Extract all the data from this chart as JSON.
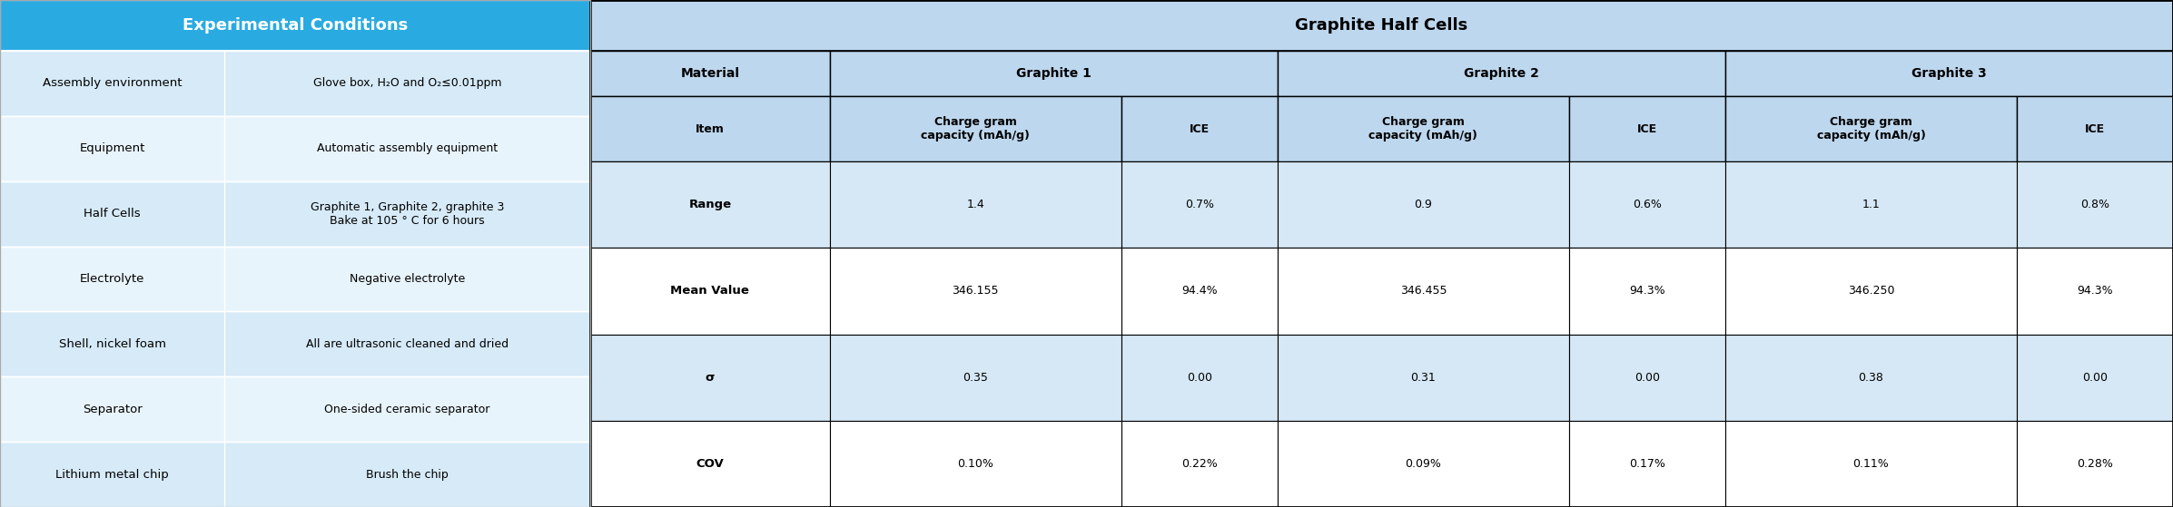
{
  "fig_width": 23.93,
  "fig_height": 5.59,
  "dpi": 100,
  "left_table": {
    "header": "Experimental Conditions",
    "header_bg": "#29ABE2",
    "header_text_color": "#FFFFFF",
    "row_bg_light": "#D6EAF8",
    "row_bg_lighter": "#E8F4FC",
    "rows": [
      [
        "Assembly environment",
        "Glove box, H₂O and O₂≤0.01ppm"
      ],
      [
        "Equipment",
        "Automatic assembly equipment"
      ],
      [
        "Half Cells",
        "Graphite 1, Graphite 2, graphite 3\nBake at 105 ° C for 6 hours"
      ],
      [
        "Electrolyte",
        "Negative electrolyte"
      ],
      [
        "Shell, nickel foam",
        "All are ultrasonic cleaned and dried"
      ],
      [
        "Separator",
        "One-sided ceramic separator"
      ],
      [
        "Lithium metal chip",
        "Brush the chip"
      ]
    ]
  },
  "right_table": {
    "super_header": "Graphite Half Cells",
    "super_header_bg": "#BDD7EE",
    "col_header_bg": "#BDD7EE",
    "sub_headers": [
      "Item",
      "Charge gram\ncapacity (mAh/g)",
      "ICE",
      "Charge gram\ncapacity (mAh/g)",
      "ICE",
      "Charge gram\ncapacity (mAh/g)",
      "ICE"
    ],
    "graphite_labels": [
      "Graphite 1",
      "Graphite 2",
      "Graphite 3"
    ],
    "rows": [
      [
        "Range",
        "1.4",
        "0.7%",
        "0.9",
        "0.6%",
        "1.1",
        "0.8%"
      ],
      [
        "Mean Value",
        "346.155",
        "94.4%",
        "346.455",
        "94.3%",
        "346.250",
        "94.3%"
      ],
      [
        "σ",
        "0.35",
        "0.00",
        "0.31",
        "0.00",
        "0.38",
        "0.00"
      ],
      [
        "COV",
        "0.10%",
        "0.22%",
        "0.09%",
        "0.17%",
        "0.11%",
        "0.28%"
      ]
    ],
    "data_row_bg_colors": [
      "#D6E8F5",
      "#FFFFFF",
      "#D6E8F5",
      "#FFFFFF"
    ]
  }
}
